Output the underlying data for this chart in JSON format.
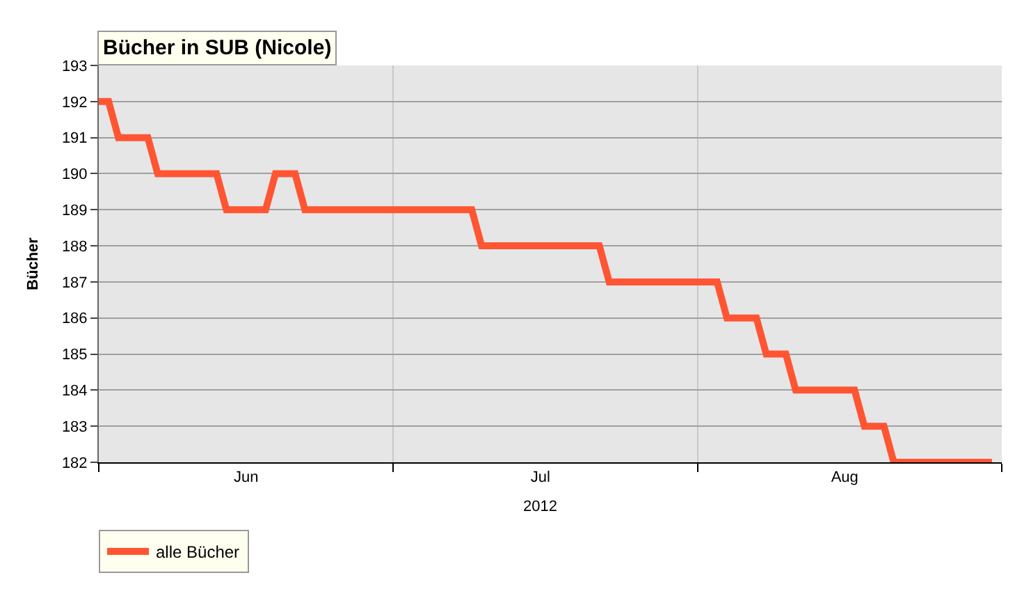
{
  "chart_data": {
    "type": "line",
    "title": "Bücher in SUB (Nicole)",
    "ylabel": "Bücher",
    "x": [
      "2012-06-01",
      "2012-06-02",
      "2012-06-03",
      "2012-06-06",
      "2012-06-07",
      "2012-06-13",
      "2012-06-14",
      "2012-06-18",
      "2012-06-19",
      "2012-06-21",
      "2012-06-22",
      "2012-07-09",
      "2012-07-10",
      "2012-07-22",
      "2012-07-23",
      "2012-08-03",
      "2012-08-04",
      "2012-08-07",
      "2012-08-08",
      "2012-08-10",
      "2012-08-11",
      "2012-08-17",
      "2012-08-18",
      "2012-08-20",
      "2012-08-21",
      "2012-08-31"
    ],
    "series": [
      {
        "name": "alle Bücher",
        "color": "#ff5533",
        "values": [
          192,
          192,
          191,
          191,
          190,
          190,
          189,
          189,
          190,
          190,
          189,
          189,
          188,
          188,
          187,
          187,
          186,
          186,
          185,
          185,
          184,
          184,
          183,
          183,
          182,
          182
        ]
      }
    ],
    "xlim": [
      "2012-06-01",
      "2012-09-01"
    ],
    "xticks": [
      {
        "value": "2012-06-01",
        "label": null
      },
      {
        "value": "2012-06-16",
        "label": "Jun"
      },
      {
        "value": "2012-07-01",
        "label": null
      },
      {
        "value": "2012-07-16",
        "label": "Jul"
      },
      {
        "value": "2012-08-01",
        "label": null
      },
      {
        "value": "2012-08-16",
        "label": "Aug"
      },
      {
        "value": "2012-09-01",
        "label": null
      }
    ],
    "ylim": [
      182,
      193
    ],
    "yticks": [
      182,
      183,
      184,
      185,
      186,
      187,
      188,
      189,
      190,
      191,
      192,
      193
    ],
    "annotations": [
      "2012"
    ],
    "grid": true,
    "legend": "bottom",
    "marker": "none",
    "line_style": "solid"
  }
}
